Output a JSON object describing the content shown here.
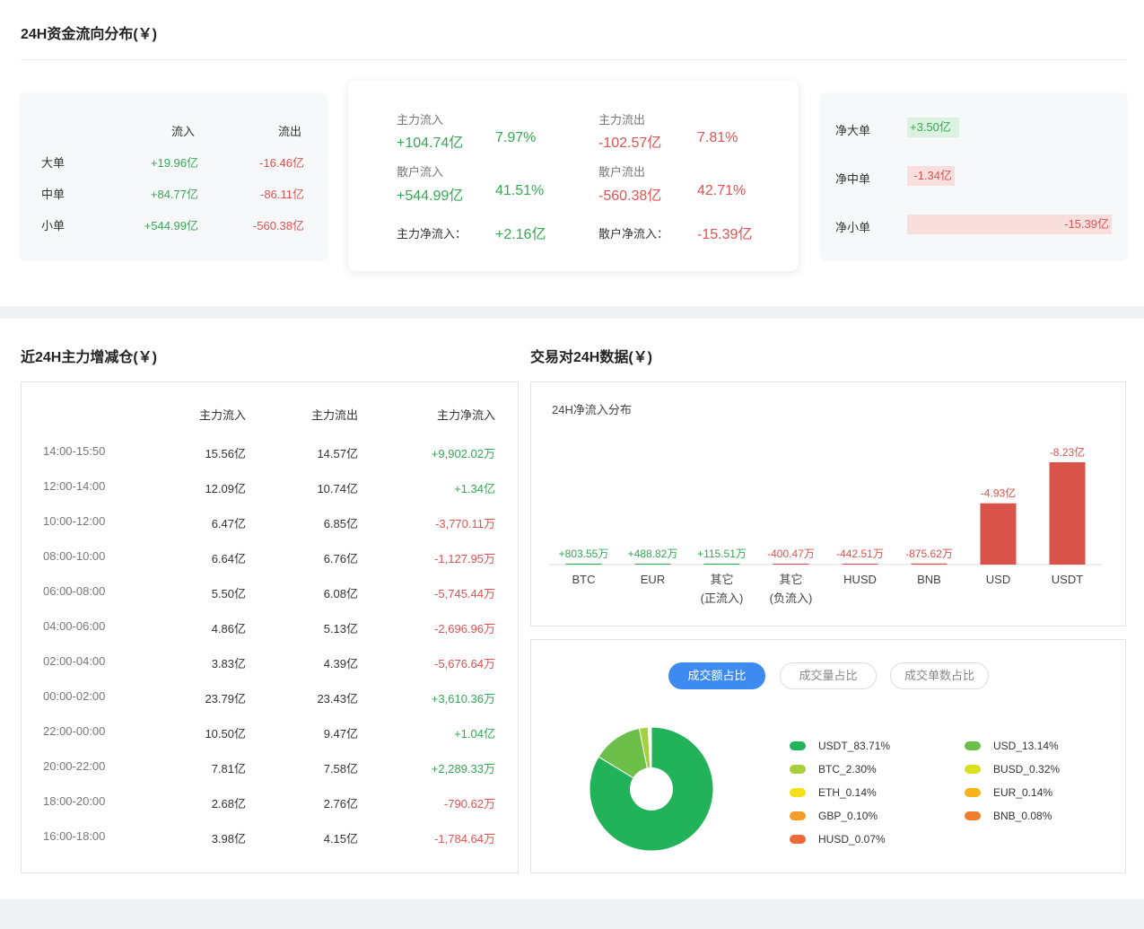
{
  "section1": {
    "title": "24H资金流向分布(￥)",
    "order_table": {
      "col_in": "流入",
      "col_out": "流出",
      "rows": [
        {
          "label": "大单",
          "in": "+19.96亿",
          "out": "-16.46亿"
        },
        {
          "label": "中单",
          "in": "+84.77亿",
          "out": "-86.11亿"
        },
        {
          "label": "小单",
          "in": "+544.99亿",
          "out": "-560.38亿"
        }
      ]
    },
    "summary": {
      "main_in_label": "主力流入",
      "main_in_value": "+104.74亿",
      "main_in_pct": "7.97%",
      "main_out_label": "主力流出",
      "main_out_value": "-102.57亿",
      "main_out_pct": "7.81%",
      "retail_in_label": "散户流入",
      "retail_in_value": "+544.99亿",
      "retail_in_pct": "41.51%",
      "retail_out_label": "散户流出",
      "retail_out_value": "-560.38亿",
      "retail_out_pct": "42.71%",
      "main_net_label": "主力净流入：",
      "main_net_value": "+2.16亿",
      "retail_net_label": "散户净流入：",
      "retail_net_value": "-15.39亿"
    },
    "net_bars": [
      {
        "label": "净大单",
        "value": "+3.50亿",
        "direction": "positive"
      },
      {
        "label": "净中单",
        "value": "-1.34亿",
        "direction": "negative"
      },
      {
        "label": "净小单",
        "value": "-15.39亿",
        "direction": "negative"
      }
    ]
  },
  "section2": {
    "title": "近24H主力增减仓(￥)",
    "headers": {
      "in": "主力流入",
      "out": "主力流出",
      "net": "主力净流入"
    },
    "rows": [
      {
        "time": "14:00-15:50",
        "in": "15.56亿",
        "out": "14.57亿",
        "net": "+9,902.02万",
        "sign": "pos"
      },
      {
        "time": "12:00-14:00",
        "in": "12.09亿",
        "out": "10.74亿",
        "net": "+1.34亿",
        "sign": "pos"
      },
      {
        "time": "10:00-12:00",
        "in": "6.47亿",
        "out": "6.85亿",
        "net": "-3,770.11万",
        "sign": "neg"
      },
      {
        "time": "08:00-10:00",
        "in": "6.64亿",
        "out": "6.76亿",
        "net": "-1,127.95万",
        "sign": "neg"
      },
      {
        "time": "06:00-08:00",
        "in": "5.50亿",
        "out": "6.08亿",
        "net": "-5,745.44万",
        "sign": "neg"
      },
      {
        "time": "04:00-06:00",
        "in": "4.86亿",
        "out": "5.13亿",
        "net": "-2,696.96万",
        "sign": "neg"
      },
      {
        "time": "02:00-04:00",
        "in": "3.83亿",
        "out": "4.39亿",
        "net": "-5,676.64万",
        "sign": "neg"
      },
      {
        "time": "00:00-02:00",
        "in": "23.79亿",
        "out": "23.43亿",
        "net": "+3,610.36万",
        "sign": "pos"
      },
      {
        "time": "22:00-00:00",
        "in": "10.50亿",
        "out": "9.47亿",
        "net": "+1.04亿",
        "sign": "pos"
      },
      {
        "time": "20:00-22:00",
        "in": "7.81亿",
        "out": "7.58亿",
        "net": "+2,289.33万",
        "sign": "pos"
      },
      {
        "time": "18:00-20:00",
        "in": "2.68亿",
        "out": "2.76亿",
        "net": "-790.62万",
        "sign": "neg"
      },
      {
        "time": "16:00-18:00",
        "in": "3.98亿",
        "out": "4.15亿",
        "net": "-1,784.64万",
        "sign": "neg"
      }
    ]
  },
  "section3": {
    "title": "交易对24H数据(￥)",
    "tabs": [
      {
        "label": "成交额占比",
        "active": true
      },
      {
        "label": "成交量占比",
        "active": false
      },
      {
        "label": "成交单数占比",
        "active": false
      }
    ]
  },
  "chart_data": [
    {
      "type": "bar",
      "title": "24H净流入分布",
      "categories": [
        "BTC",
        "EUR",
        "其它\n(正流入)",
        "其它\n(负流入)",
        "HUSD",
        "BNB",
        "USD",
        "USDT"
      ],
      "category_lines": [
        [
          "BTC"
        ],
        [
          "EUR"
        ],
        [
          "其它",
          "(正流入)"
        ],
        [
          "其它",
          "(负流入)"
        ],
        [
          "HUSD"
        ],
        [
          "BNB"
        ],
        [
          "USD"
        ],
        [
          "USDT"
        ]
      ],
      "labels": [
        "+803.55万",
        "+488.82万",
        "+115.51万",
        "-400.47万",
        "-442.51万",
        "-875.62万",
        "-4.93亿",
        "-8.23亿"
      ],
      "values_wan": [
        803.55,
        488.82,
        115.51,
        -400.47,
        -442.51,
        -875.62,
        -49300,
        -82300
      ],
      "colors": {
        "positive": "#35a853",
        "negative": "#d9534a"
      }
    },
    {
      "type": "pie",
      "title": "成交额占比",
      "series": [
        {
          "name": "USDT_83.71%",
          "value": 83.71,
          "color": "#22b25a"
        },
        {
          "name": "USD_13.14%",
          "value": 13.14,
          "color": "#6cc04a"
        },
        {
          "name": "BTC_2.30%",
          "value": 2.3,
          "color": "#a6d13c"
        },
        {
          "name": "BUSD_0.32%",
          "value": 0.32,
          "color": "#d9e021"
        },
        {
          "name": "ETH_0.14%",
          "value": 0.14,
          "color": "#f5e11a"
        },
        {
          "name": "EUR_0.14%",
          "value": 0.14,
          "color": "#f7b41c"
        },
        {
          "name": "GBP_0.10%",
          "value": 0.1,
          "color": "#f39c2a"
        },
        {
          "name": "BNB_0.08%",
          "value": 0.08,
          "color": "#ef7d2d"
        },
        {
          "name": "HUSD_0.07%",
          "value": 0.07,
          "color": "#ec6a37"
        }
      ]
    }
  ]
}
